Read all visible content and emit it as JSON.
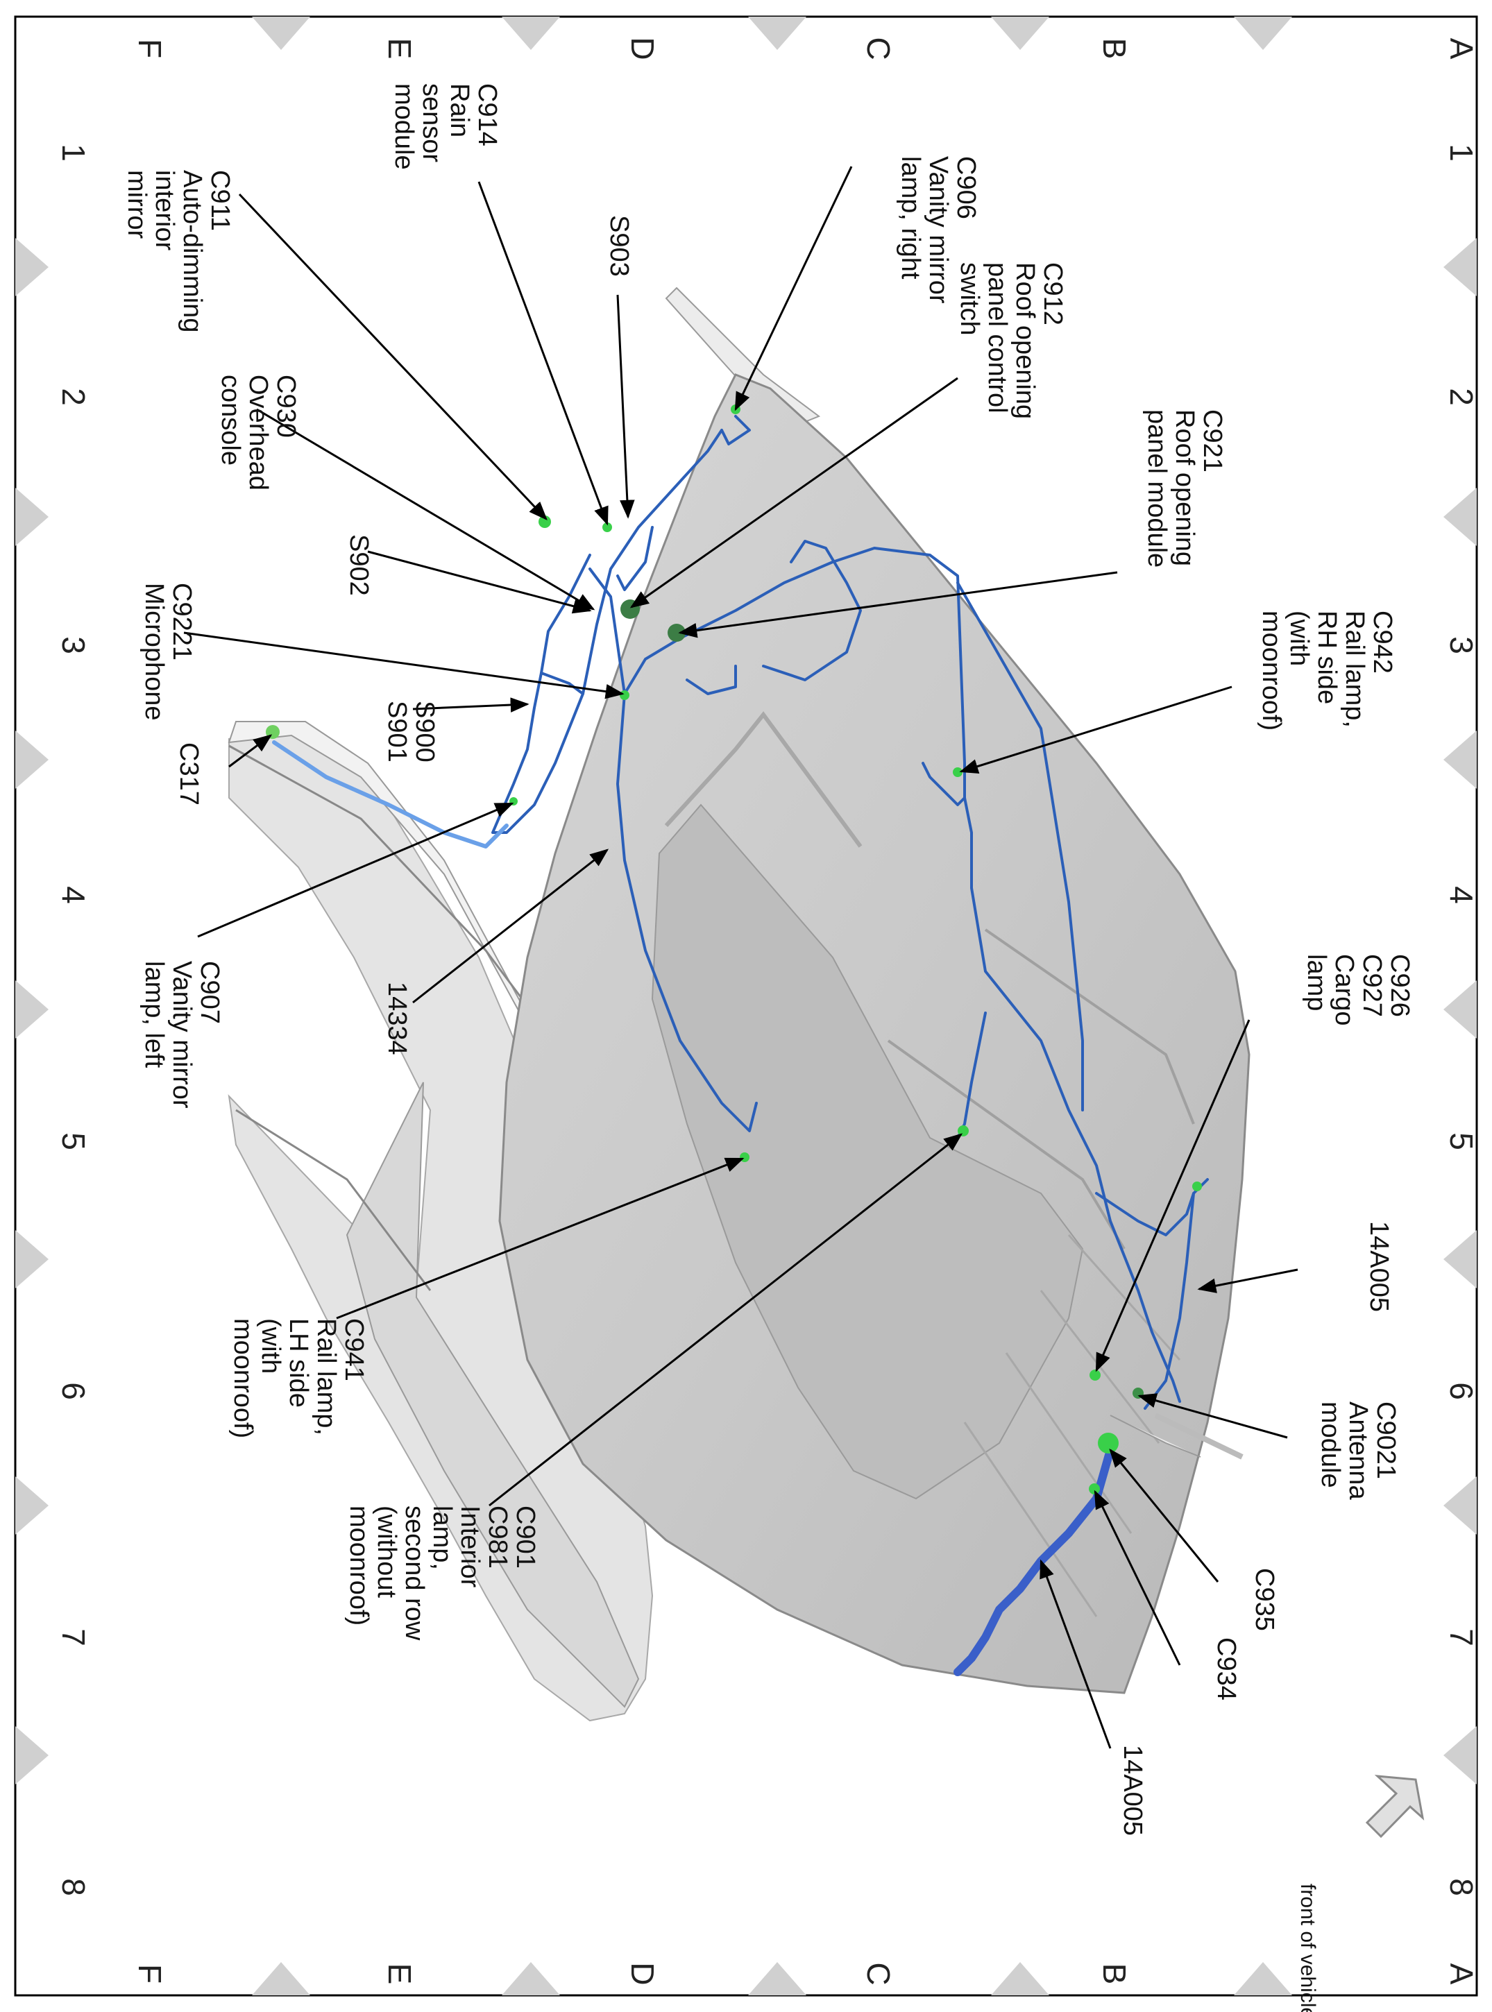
{
  "diagram": {
    "grid": {
      "rows": [
        "A",
        "B",
        "C",
        "D",
        "E",
        "F"
      ],
      "cols": [
        "1",
        "2",
        "3",
        "4",
        "5",
        "6",
        "7",
        "8"
      ]
    },
    "front_label": "front of vehicle",
    "callouts": [
      {
        "id": "c906",
        "lines": [
          "C906",
          "Vanity mirror",
          "lamp, right"
        ]
      },
      {
        "id": "c912",
        "lines": [
          "C912",
          "Roof opening",
          "panel control",
          "switch"
        ]
      },
      {
        "id": "c921",
        "lines": [
          "C921",
          "Roof opening",
          "panel module"
        ]
      },
      {
        "id": "c942",
        "lines": [
          "C942",
          "Rail lamp,",
          "RH side",
          "(with",
          "moonroof)"
        ]
      },
      {
        "id": "c926",
        "lines": [
          "C926",
          "C927",
          "Cargo",
          "lamp"
        ]
      },
      {
        "id": "a14a005top",
        "lines": [
          "14A005"
        ]
      },
      {
        "id": "c9021",
        "lines": [
          "C9021",
          "Antenna",
          "module"
        ]
      },
      {
        "id": "c935",
        "lines": [
          "C935"
        ]
      },
      {
        "id": "c934",
        "lines": [
          "C934"
        ]
      },
      {
        "id": "a14a005bot",
        "lines": [
          "14A005"
        ]
      },
      {
        "id": "c914",
        "lines": [
          "C914",
          "Rain",
          "sensor",
          "module"
        ]
      },
      {
        "id": "s903",
        "lines": [
          "S903"
        ]
      },
      {
        "id": "c911",
        "lines": [
          "C911",
          "Auto-dimming",
          "interior",
          "mirror"
        ]
      },
      {
        "id": "c930",
        "lines": [
          "C930",
          "Overhead",
          "console"
        ]
      },
      {
        "id": "s902",
        "lines": [
          "S902"
        ]
      },
      {
        "id": "c9221",
        "lines": [
          "C9221",
          "Microphone"
        ]
      },
      {
        "id": "s900",
        "lines": [
          "S900",
          "S901"
        ]
      },
      {
        "id": "c317",
        "lines": [
          "C317"
        ]
      },
      {
        "id": "c907",
        "lines": [
          "C907",
          "Vanity mirror",
          "lamp, left"
        ]
      },
      {
        "id": "w14334",
        "lines": [
          "14334"
        ]
      },
      {
        "id": "c941",
        "lines": [
          "C941",
          "Rail lamp,",
          "LH side",
          "(with",
          "moonroof)"
        ]
      },
      {
        "id": "c901",
        "lines": [
          "C901",
          "C981",
          "Interior",
          "lamp,",
          "second row",
          "(without",
          "moonroof)"
        ]
      }
    ]
  }
}
